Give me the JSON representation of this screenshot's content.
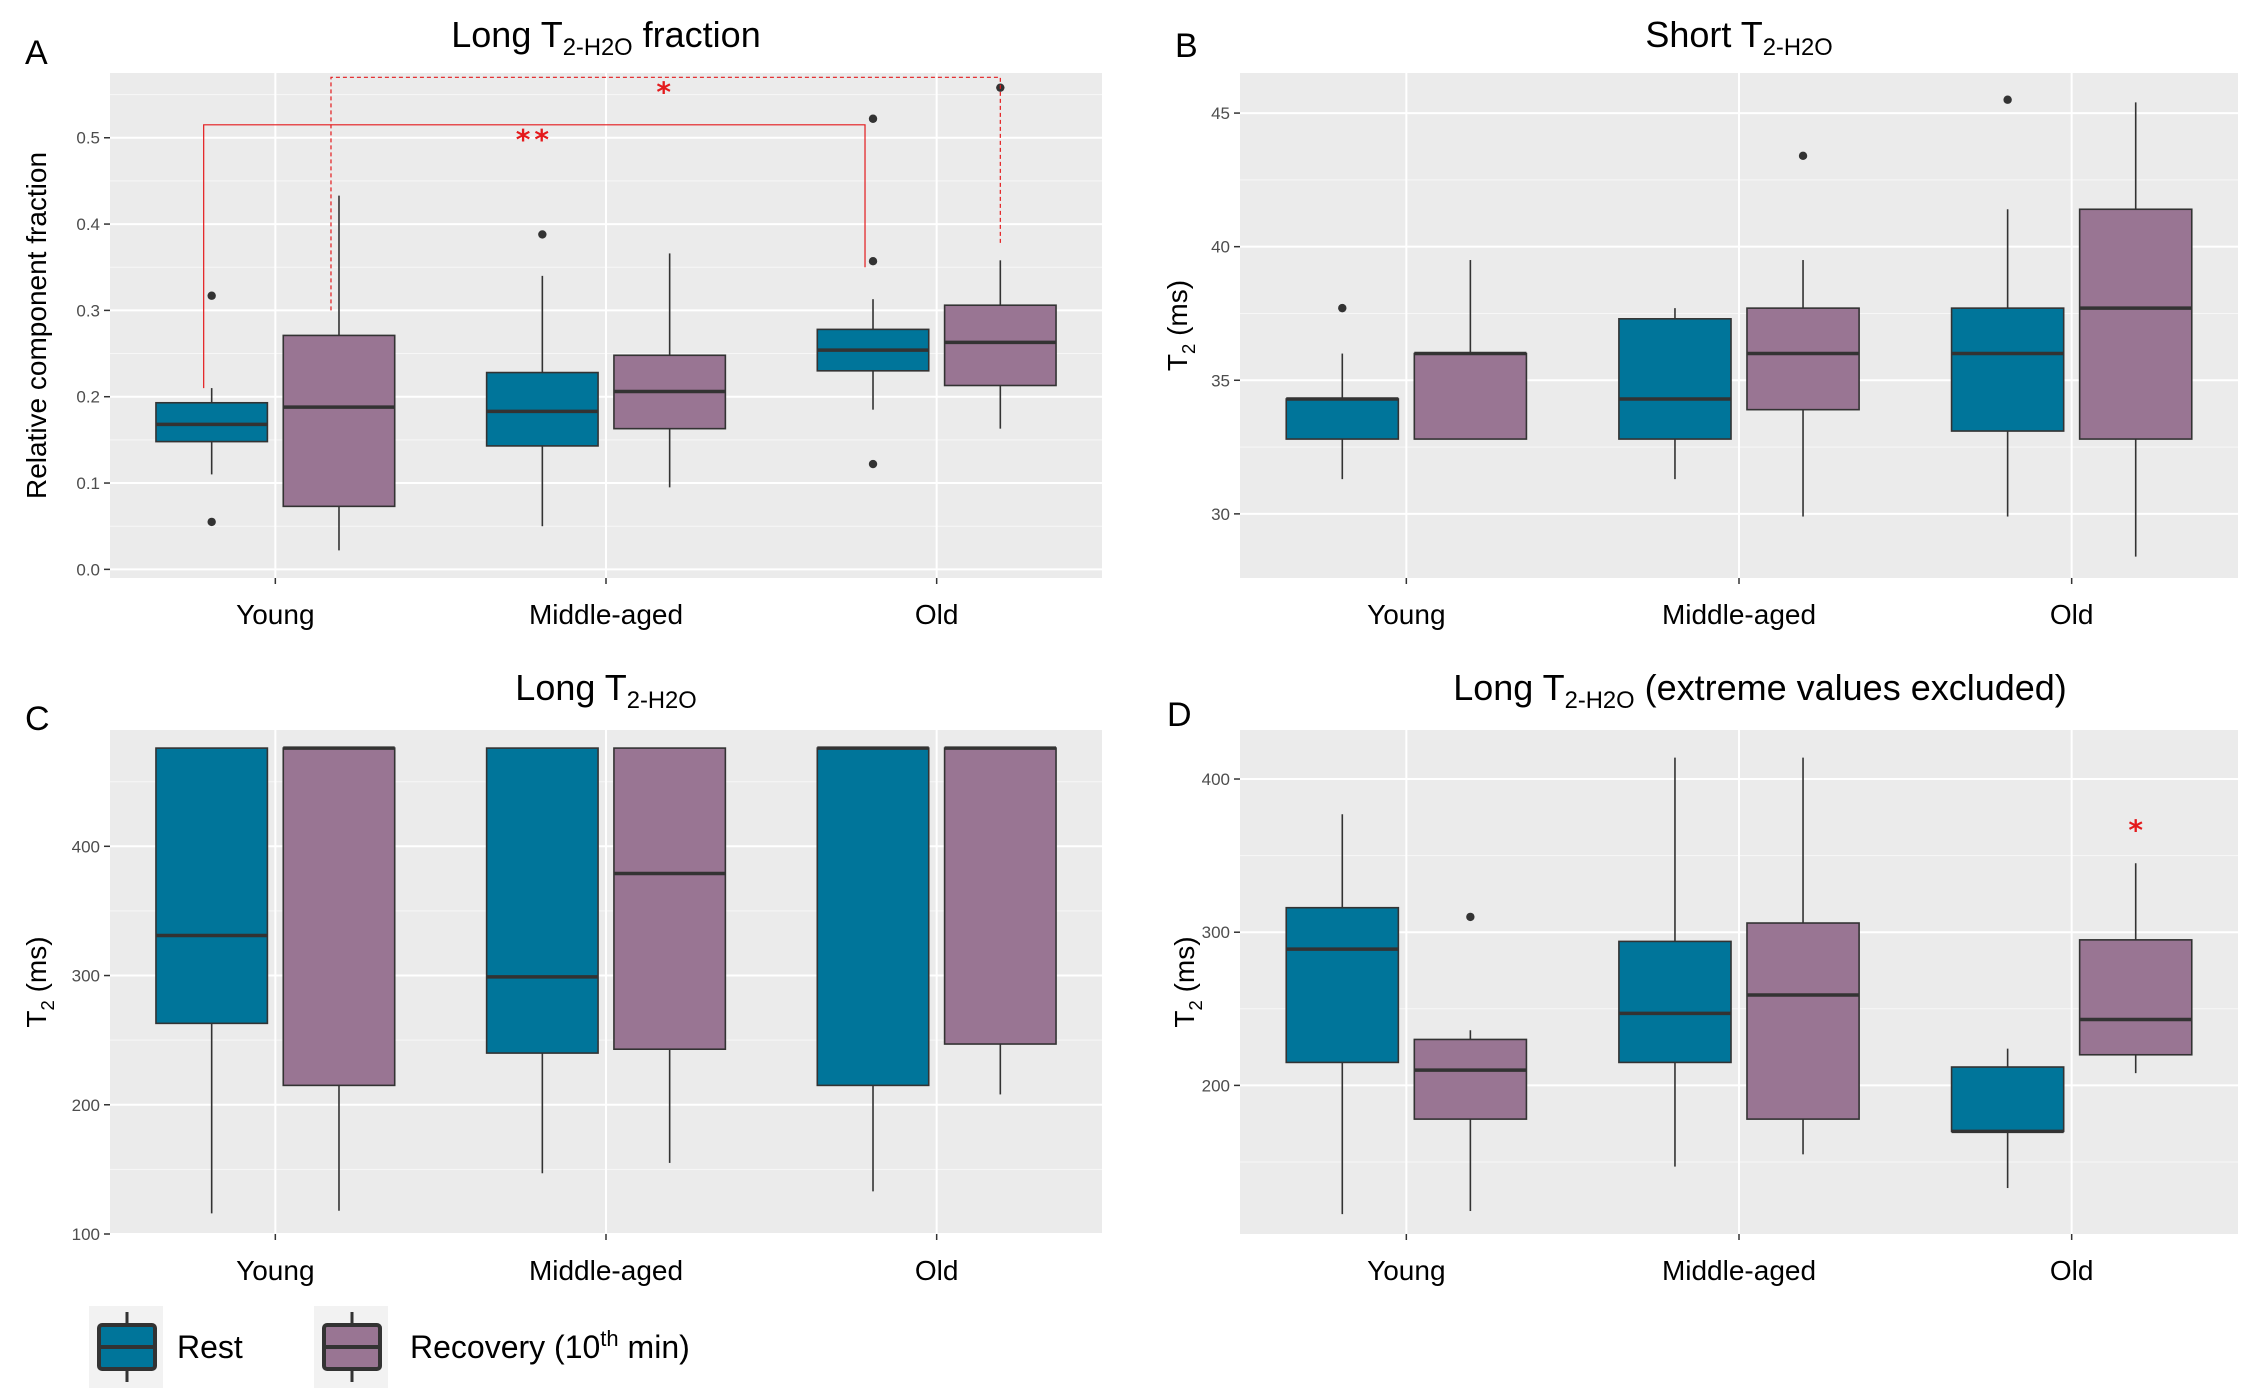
{
  "legend": {
    "items": [
      {
        "label": "Rest",
        "color": "#00759a"
      },
      {
        "label": "Recovery (10",
        "sup": "th",
        "suffix": " min)",
        "color": "#997593"
      }
    ]
  },
  "colors": {
    "rest": "#00759a",
    "recovery": "#997593",
    "panel_bg": "#ebebeb",
    "grid": "#ffffff",
    "significance": "#e41a1c"
  },
  "chart_data": [
    {
      "letter": "A",
      "type": "box",
      "title": {
        "pre": "Long T",
        "sub": "2-H2O",
        "post": " fraction"
      },
      "ylabel": {
        "pre": "Relative component fraction",
        "sub": "",
        "post": ""
      },
      "categories": [
        "Young",
        "Middle-aged",
        "Old"
      ],
      "ylim": [
        -0.01,
        0.575
      ],
      "yticks": [
        0.0,
        0.1,
        0.2,
        0.3,
        0.4,
        0.5
      ],
      "ytick_labels": [
        "0.0",
        "0.1",
        "0.2",
        "0.3",
        "0.4",
        "0.5"
      ],
      "series": [
        {
          "name": "Rest",
          "boxes": [
            {
              "whislo": 0.11,
              "q1": 0.148,
              "med": 0.168,
              "q3": 0.193,
              "whishi": 0.21,
              "outliers": [
                0.317,
                0.055
              ]
            },
            {
              "whislo": 0.05,
              "q1": 0.143,
              "med": 0.183,
              "q3": 0.228,
              "whishi": 0.34,
              "outliers": [
                0.388
              ]
            },
            {
              "whislo": 0.185,
              "q1": 0.23,
              "med": 0.254,
              "q3": 0.278,
              "whishi": 0.313,
              "outliers": [
                0.522,
                0.357,
                0.122
              ]
            }
          ]
        },
        {
          "name": "Recovery (10th min)",
          "boxes": [
            {
              "whislo": 0.022,
              "q1": 0.073,
              "med": 0.188,
              "q3": 0.271,
              "whishi": 0.433,
              "outliers": []
            },
            {
              "whislo": 0.095,
              "q1": 0.163,
              "med": 0.206,
              "q3": 0.248,
              "whishi": 0.366,
              "outliers": []
            },
            {
              "whislo": 0.163,
              "q1": 0.213,
              "med": 0.263,
              "q3": 0.306,
              "whishi": 0.358,
              "outliers": [
                0.558
              ]
            }
          ]
        }
      ],
      "significance": [
        {
          "label": "**",
          "from": [
            0,
            0
          ],
          "to": [
            2,
            0
          ],
          "y": 0.515,
          "y_from": 0.21,
          "y_to": 0.35,
          "dashed": false
        },
        {
          "label": "*",
          "from": [
            0,
            1
          ],
          "to": [
            2,
            1
          ],
          "y": 0.57,
          "y_from": 0.3,
          "y_to": 0.375,
          "dashed": true
        }
      ]
    },
    {
      "letter": "B",
      "type": "box",
      "title": {
        "pre": "Short T",
        "sub": "2-H2O",
        "post": ""
      },
      "ylabel": {
        "pre": "T",
        "sub": "2",
        "post": " (ms)"
      },
      "categories": [
        "Young",
        "Middle-aged",
        "Old"
      ],
      "ylim": [
        27.6,
        46.5
      ],
      "yticks": [
        30,
        35,
        40,
        45
      ],
      "ytick_labels": [
        "30",
        "35",
        "40",
        "45"
      ],
      "series": [
        {
          "name": "Rest",
          "boxes": [
            {
              "whislo": 31.3,
              "q1": 32.8,
              "med": 34.3,
              "q3": 34.3,
              "whishi": 36.0,
              "outliers": [
                37.7
              ]
            },
            {
              "whislo": 31.3,
              "q1": 32.8,
              "med": 34.3,
              "q3": 37.3,
              "whishi": 37.7,
              "outliers": []
            },
            {
              "whislo": 29.9,
              "q1": 33.1,
              "med": 36.0,
              "q3": 37.7,
              "whishi": 41.4,
              "outliers": [
                45.5
              ]
            }
          ]
        },
        {
          "name": "Recovery (10th min)",
          "boxes": [
            {
              "whislo": 32.8,
              "q1": 32.8,
              "med": 36.0,
              "q3": 36.0,
              "whishi": 39.5,
              "outliers": []
            },
            {
              "whislo": 29.9,
              "q1": 33.9,
              "med": 36.0,
              "q3": 37.7,
              "whishi": 39.5,
              "outliers": [
                43.4
              ]
            },
            {
              "whislo": 28.4,
              "q1": 32.8,
              "med": 37.7,
              "q3": 41.4,
              "whishi": 45.4,
              "outliers": []
            }
          ]
        }
      ],
      "significance": []
    },
    {
      "letter": "C",
      "type": "box",
      "title": {
        "pre": "Long T",
        "sub": "2-H2O",
        "post": ""
      },
      "ylabel": {
        "pre": "T",
        "sub": "2",
        "post": " (ms)"
      },
      "categories": [
        "Young",
        "Middle-aged",
        "Old"
      ],
      "ylim": [
        100,
        490
      ],
      "yticks": [
        100,
        200,
        300,
        400
      ],
      "ytick_labels": [
        "100",
        "200",
        "300",
        "400"
      ],
      "series": [
        {
          "name": "Rest",
          "boxes": [
            {
              "whislo": 116,
              "q1": 263,
              "med": 331,
              "q3": 476,
              "whishi": 476,
              "outliers": []
            },
            {
              "whislo": 147,
              "q1": 240,
              "med": 299,
              "q3": 476,
              "whishi": 476,
              "outliers": []
            },
            {
              "whislo": 133,
              "q1": 215,
              "med": 476,
              "q3": 476,
              "whishi": 476,
              "outliers": []
            }
          ]
        },
        {
          "name": "Recovery (10th min)",
          "boxes": [
            {
              "whislo": 118,
              "q1": 215,
              "med": 476,
              "q3": 476,
              "whishi": 476,
              "outliers": []
            },
            {
              "whislo": 155,
              "q1": 243,
              "med": 379,
              "q3": 476,
              "whishi": 476,
              "outliers": []
            },
            {
              "whislo": 208,
              "q1": 247,
              "med": 476,
              "q3": 476,
              "whishi": 476,
              "outliers": []
            }
          ]
        }
      ],
      "significance": []
    },
    {
      "letter": "D",
      "type": "box",
      "title": {
        "pre": "Long T",
        "sub": "2-H2O",
        "post": " (extreme values excluded)"
      },
      "ylabel": {
        "pre": "T",
        "sub": "2",
        "post": " (ms)"
      },
      "categories": [
        "Young",
        "Middle-aged",
        "Old"
      ],
      "ylim": [
        103,
        432
      ],
      "yticks": [
        200,
        300,
        400
      ],
      "ytick_labels": [
        "200",
        "300",
        "400"
      ],
      "series": [
        {
          "name": "Rest",
          "boxes": [
            {
              "whislo": 116,
              "q1": 215,
              "med": 289,
              "q3": 316,
              "whishi": 377,
              "outliers": []
            },
            {
              "whislo": 147,
              "q1": 215,
              "med": 247,
              "q3": 294,
              "whishi": 414,
              "outliers": []
            },
            {
              "whislo": 133,
              "q1": 170,
              "med": 170,
              "q3": 212,
              "whishi": 224,
              "outliers": []
            }
          ]
        },
        {
          "name": "Recovery (10th min)",
          "boxes": [
            {
              "whislo": 118,
              "q1": 178,
              "med": 210,
              "q3": 230,
              "whishi": 236,
              "outliers": [
                310
              ]
            },
            {
              "whislo": 155,
              "q1": 178,
              "med": 259,
              "q3": 306,
              "whishi": 414,
              "outliers": []
            },
            {
              "whislo": 208,
              "q1": 220,
              "med": 243,
              "q3": 295,
              "whishi": 345,
              "outliers": []
            }
          ]
        }
      ],
      "significance": [
        {
          "label": "*",
          "at": [
            2,
            1
          ],
          "y": 375
        }
      ]
    }
  ]
}
